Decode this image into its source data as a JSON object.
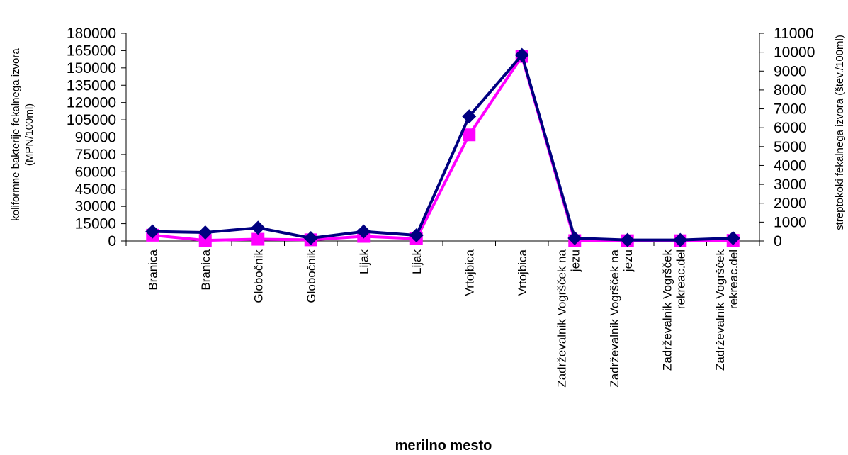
{
  "chart_data": {
    "type": "line",
    "title": "",
    "xlabel": "merilno mesto",
    "ylabel_left": [
      "koliformne bakterije fekalnega izvora",
      "(MPN/100ml)"
    ],
    "ylabel_right": "streptokoki fekalnega izvora (štev./100ml)",
    "ylim_left": [
      0,
      180000
    ],
    "ylim_right": [
      0,
      11000
    ],
    "yticks_left": [
      "0",
      "15000",
      "30000",
      "45000",
      "60000",
      "75000",
      "90000",
      "105000",
      "120000",
      "135000",
      "150000",
      "165000",
      "180000"
    ],
    "yticks_right": [
      "0",
      "1000",
      "2000",
      "3000",
      "4000",
      "5000",
      "6000",
      "7000",
      "8000",
      "9000",
      "10000",
      "11000"
    ],
    "categories": [
      [
        "Branica"
      ],
      [
        "Branica"
      ],
      [
        "Globočnik"
      ],
      [
        "Globočnik"
      ],
      [
        "Lijak"
      ],
      [
        "Lijak"
      ],
      [
        "Vrtojbica"
      ],
      [
        "Vrtojbica"
      ],
      [
        "Zadrževalnik Vogršček na",
        "jezu"
      ],
      [
        "Zadrževalnik Vogršček na",
        "jezu"
      ],
      [
        "Zadrževalnik Vogršček",
        "rekreac.del"
      ],
      [
        "Zadrževalnik Vogršček",
        "rekreac.del"
      ]
    ],
    "series": [
      {
        "axis": "left",
        "marker": "square",
        "color": "#ff00ff",
        "values": [
          5000,
          500,
          1500,
          1000,
          4000,
          2000,
          92000,
          160000,
          300,
          200,
          200,
          500
        ]
      },
      {
        "axis": "right",
        "marker": "diamond",
        "color": "#000080",
        "values": [
          500,
          450,
          700,
          150,
          500,
          300,
          6600,
          9850,
          150,
          50,
          50,
          150
        ]
      }
    ],
    "legend": "none",
    "grid": false
  }
}
